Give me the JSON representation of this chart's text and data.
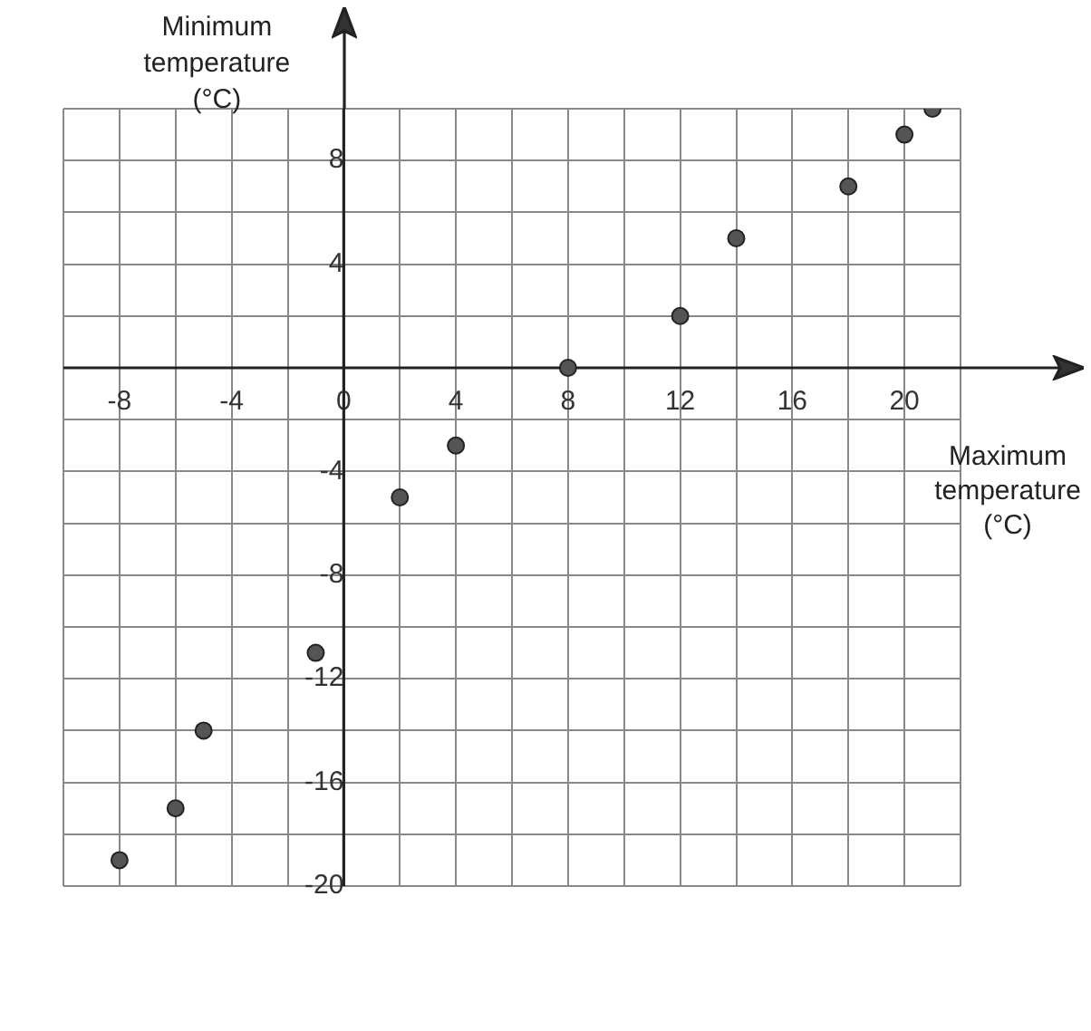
{
  "chart_data": {
    "type": "scatter",
    "xlabel": "Maximum temperature (°C)",
    "ylabel": "Minimum temperature (°C)",
    "x": [
      -8,
      -6,
      -5,
      -1,
      2,
      4,
      8,
      12,
      14,
      18,
      20,
      21
    ],
    "values": [
      -19,
      -17,
      -14,
      -11,
      -5,
      -3,
      0,
      2,
      5,
      7,
      9,
      10
    ],
    "color": "#555555",
    "marker": "circle",
    "grid": true,
    "xlim": [
      -10,
      22
    ],
    "ylim": [
      -20,
      10
    ],
    "xticks": [
      {
        "value": -10,
        "label": null
      },
      -8,
      {
        "value": -6,
        "label": null
      },
      -4,
      {
        "value": -2,
        "label": null
      },
      0,
      {
        "value": 2,
        "label": null
      },
      4,
      {
        "value": 6,
        "label": null
      },
      8,
      {
        "value": 10,
        "label": null
      },
      12,
      {
        "value": 14,
        "label": null
      },
      16,
      {
        "value": 18,
        "label": null
      },
      20,
      {
        "value": 22,
        "label": null
      }
    ],
    "yticks": [
      -20,
      {
        "value": -18,
        "label": null
      },
      -16,
      {
        "value": -14,
        "label": null
      },
      -12,
      {
        "value": -10,
        "label": null
      },
      -8,
      {
        "value": -6,
        "label": null
      },
      -4,
      {
        "value": -2,
        "label": null
      },
      {
        "value": 0,
        "label": null
      },
      {
        "value": 2,
        "label": null
      },
      4,
      {
        "value": 6,
        "label": null
      },
      8,
      {
        "value": 10,
        "label": null
      }
    ]
  }
}
